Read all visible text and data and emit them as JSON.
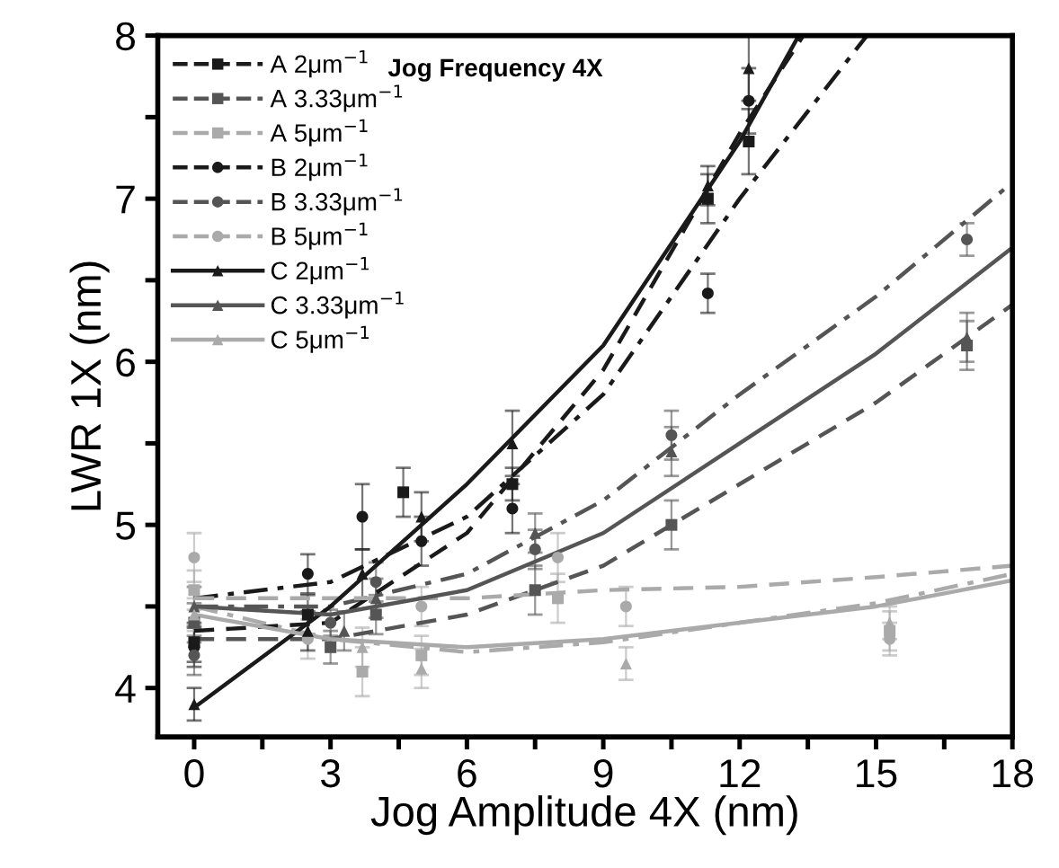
{
  "chart_data": {
    "type": "scatter",
    "xlabel": "Jog Amplitude 4X (nm)",
    "ylabel": "LWR 1X (nm)",
    "annotations": [
      "Jog Frequency 4X"
    ],
    "xlim": [
      -0.8,
      18
    ],
    "xticks": [
      0,
      {
        "value": 1.5,
        "label": null
      },
      3,
      {
        "value": 4.5,
        "label": null
      },
      6,
      {
        "value": 7.5,
        "label": null
      },
      9,
      {
        "value": 10.5,
        "label": null
      },
      12,
      {
        "value": 13.5,
        "label": null
      },
      15,
      {
        "value": 16.5,
        "label": null
      },
      18
    ],
    "ylim": [
      3.7,
      8
    ],
    "yticks": [
      4,
      {
        "value": 4.5,
        "label": null
      },
      5,
      {
        "value": 5.5,
        "label": null
      },
      6,
      {
        "value": 6.5,
        "label": null
      },
      7,
      {
        "value": 7.5,
        "label": null
      },
      8
    ],
    "legend": "top left",
    "grid": false,
    "series": [
      {
        "name": "A 2μm$^{−1}$",
        "color": "#1a1a1a",
        "marker": "square",
        "x": [
          0,
          2.5,
          4.6,
          7,
          11.3,
          12.2
        ],
        "values": [
          4.28,
          4.45,
          5.2,
          5.25,
          7.0,
          7.35
        ],
        "errors": [
          0.12,
          0.12,
          0.15,
          0.1,
          0.15,
          0.2
        ]
      },
      {
        "name": "A 3.33μm$^{−1}$",
        "color": "#555555",
        "marker": "square",
        "x": [
          0,
          3,
          4,
          7.5,
          10.5,
          17
        ],
        "values": [
          4.4,
          4.25,
          4.45,
          4.6,
          5.0,
          6.1
        ],
        "errors": [
          0.12,
          0.1,
          0.12,
          0.15,
          0.15,
          0.15
        ]
      },
      {
        "name": "A 5μm$^{−1}$",
        "color": "#aaaaaa",
        "marker": "square",
        "x": [
          0,
          3.7,
          5,
          8,
          15.3
        ],
        "values": [
          4.6,
          4.1,
          4.2,
          4.55,
          4.35
        ],
        "errors": [
          0.12,
          0.15,
          0.12,
          0.15,
          0.12
        ]
      },
      {
        "name": "B 2μm$^{−1}$",
        "color": "#1a1a1a",
        "marker": "circle",
        "x": [
          0,
          2.5,
          3.7,
          5,
          7,
          11.3,
          12.2
        ],
        "values": [
          4.25,
          4.7,
          5.05,
          4.9,
          5.1,
          6.42,
          7.6
        ],
        "errors": [
          0.12,
          0.12,
          0.2,
          0.15,
          0.15,
          0.12,
          0.2
        ]
      },
      {
        "name": "B 3.33μm$^{−1}$",
        "color": "#555555",
        "marker": "circle",
        "x": [
          0,
          3,
          4,
          7.5,
          10.5,
          17
        ],
        "values": [
          4.2,
          4.4,
          4.65,
          4.85,
          5.55,
          6.75
        ],
        "errors": [
          0.12,
          0.08,
          0.12,
          0.12,
          0.15,
          0.1
        ]
      },
      {
        "name": "B 5μm$^{−1}$",
        "color": "#aaaaaa",
        "marker": "circle",
        "x": [
          0,
          2.5,
          5,
          8,
          9.5,
          15.3
        ],
        "values": [
          4.8,
          4.3,
          4.5,
          4.8,
          4.5,
          4.3
        ],
        "errors": [
          0.15,
          0.12,
          0.12,
          0.15,
          0.12,
          0.1
        ]
      },
      {
        "name": "C 2μm$^{−1}$",
        "color": "#1a1a1a",
        "marker": "triangle",
        "x": [
          0,
          2.5,
          3.7,
          5,
          7,
          11.3,
          12.2
        ],
        "values": [
          3.9,
          4.35,
          4.7,
          5.05,
          5.5,
          7.08,
          7.8
        ],
        "errors": [
          0.1,
          0.12,
          0.15,
          0.15,
          0.2,
          0.12,
          0.2
        ]
      },
      {
        "name": "C 3.33μm$^{−1}$",
        "color": "#555555",
        "marker": "triangle",
        "x": [
          0,
          3.3,
          4,
          7.5,
          10.5,
          17
        ],
        "values": [
          4.5,
          4.35,
          4.55,
          4.95,
          5.45,
          6.15
        ],
        "errors": [
          0.12,
          0.12,
          0.12,
          0.12,
          0.15,
          0.15
        ]
      },
      {
        "name": "C 5μm$^{−1}$",
        "color": "#aaaaaa",
        "marker": "triangle",
        "x": [
          0,
          3.7,
          5,
          9.5,
          15.3
        ],
        "values": [
          4.45,
          4.25,
          4.12,
          4.15,
          4.4
        ],
        "errors": [
          0.1,
          0.12,
          0.12,
          0.1,
          0.1
        ]
      },
      {
        "type": "line",
        "color": "#1a1a1a",
        "line_style": "dashdot",
        "x": [
          0,
          3,
          6,
          9,
          12,
          14.8
        ],
        "values": [
          4.55,
          4.65,
          5.05,
          5.8,
          7.0,
          8
        ]
      },
      {
        "type": "line",
        "color": "#555555",
        "line_style": "dashdot",
        "x": [
          0,
          3,
          6,
          9,
          12,
          15,
          18
        ],
        "values": [
          4.5,
          4.5,
          4.7,
          5.15,
          5.8,
          6.4,
          7.1
        ]
      },
      {
        "type": "line",
        "color": "#aaaaaa",
        "line_style": "dashdot",
        "x": [
          0,
          3,
          6,
          9,
          12,
          15,
          18
        ],
        "values": [
          4.5,
          4.3,
          4.22,
          4.28,
          4.4,
          4.52,
          4.7
        ]
      },
      {
        "type": "line",
        "color": "#1a1a1a",
        "line_style": "dashed",
        "x": [
          0,
          3,
          6,
          9,
          12,
          13.4
        ],
        "values": [
          4.35,
          4.4,
          4.95,
          5.95,
          7.4,
          8
        ]
      },
      {
        "type": "line",
        "color": "#555555",
        "line_style": "dashed",
        "x": [
          0,
          3,
          6,
          9,
          12,
          15,
          18
        ],
        "values": [
          4.3,
          4.3,
          4.45,
          4.75,
          5.25,
          5.75,
          6.35
        ]
      },
      {
        "type": "line",
        "color": "#aaaaaa",
        "line_style": "dashed",
        "x": [
          0,
          3,
          6,
          9,
          12,
          15,
          18
        ],
        "values": [
          4.55,
          4.55,
          4.55,
          4.6,
          4.62,
          4.68,
          4.75
        ]
      },
      {
        "type": "line",
        "color": "#1a1a1a",
        "line_style": "solid",
        "x": [
          0,
          3,
          6,
          9,
          12,
          13.3
        ],
        "values": [
          3.88,
          4.5,
          5.25,
          6.1,
          7.35,
          8
        ]
      },
      {
        "type": "line",
        "color": "#555555",
        "line_style": "solid",
        "x": [
          0,
          3,
          6,
          9,
          12,
          15,
          18
        ],
        "values": [
          4.5,
          4.45,
          4.6,
          4.95,
          5.5,
          6.05,
          6.7
        ]
      },
      {
        "type": "line",
        "color": "#aaaaaa",
        "line_style": "solid",
        "x": [
          0,
          3,
          6,
          9,
          12,
          15,
          18
        ],
        "values": [
          4.45,
          4.3,
          4.25,
          4.3,
          4.4,
          4.5,
          4.66
        ]
      }
    ]
  }
}
